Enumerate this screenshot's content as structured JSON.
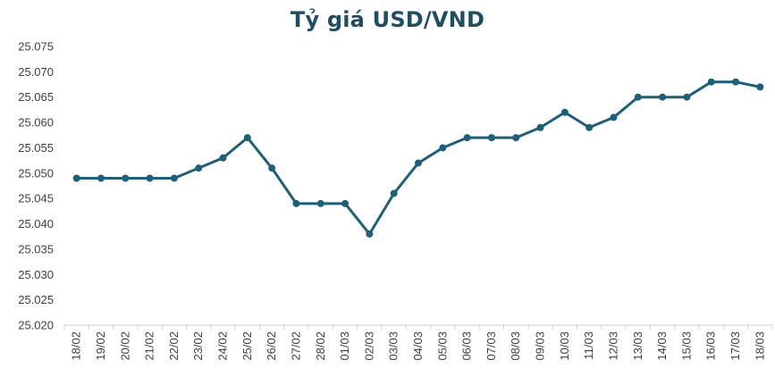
{
  "chart_data": {
    "type": "line",
    "title": "Tỷ giá USD/VND",
    "xlabel": "",
    "ylabel": "",
    "ylim": [
      25020,
      25075
    ],
    "ytick_step": 5,
    "y_tick_labels": [
      "25.020",
      "25.025",
      "25.030",
      "25.035",
      "25.040",
      "25.045",
      "25.050",
      "25.055",
      "25.060",
      "25.065",
      "25.070",
      "25.075"
    ],
    "grid": false,
    "legend": "none",
    "line_color": "#1f5f7a",
    "categories": [
      "18/02",
      "19/02",
      "20/02",
      "21/02",
      "22/02",
      "23/02",
      "24/02",
      "25/02",
      "26/02",
      "27/02",
      "28/02",
      "01/03",
      "02/03",
      "03/03",
      "04/03",
      "05/03",
      "06/03",
      "07/03",
      "08/03",
      "09/03",
      "10/03",
      "11/03",
      "12/03",
      "13/03",
      "14/03",
      "15/03",
      "16/03",
      "17/03",
      "18/03"
    ],
    "series": [
      {
        "values": [
          25049,
          25049,
          25049,
          25049,
          25049,
          25051,
          25053,
          25057,
          25051,
          25044,
          25044,
          25044,
          25038,
          25046,
          25052,
          25055,
          25057,
          25057,
          25057,
          25059,
          25062,
          25059,
          25061,
          25065,
          25065,
          25065,
          25068,
          25068,
          25067
        ]
      }
    ]
  }
}
